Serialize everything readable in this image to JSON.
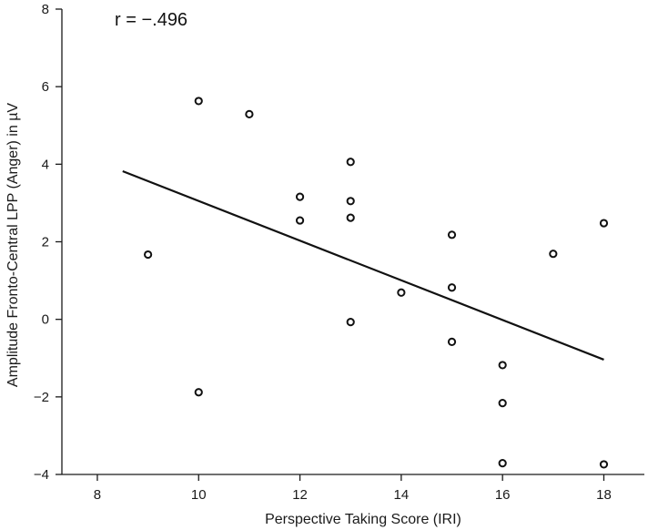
{
  "chart_data": {
    "type": "scatter",
    "title": "",
    "xlabel": "Perspective Taking Score (IRI)",
    "ylabel": "Amplitude Fronto-Central LPP (Anger) in  µV",
    "annotation": "r = −.496",
    "xlim": [
      7.3,
      18.8
    ],
    "ylim": [
      -4,
      8
    ],
    "xticks": [
      8,
      10,
      12,
      14,
      16,
      18
    ],
    "yticks": [
      -4,
      -2,
      0,
      2,
      4,
      6,
      8
    ],
    "xtick_labels": [
      "8",
      "10",
      "12",
      "14",
      "16",
      "18"
    ],
    "ytick_labels": [
      "−4",
      "−2",
      "0",
      "2",
      "4",
      "6",
      "8"
    ],
    "grid": false,
    "points": [
      {
        "x": 9,
        "y": 1.67
      },
      {
        "x": 10,
        "y": 5.63
      },
      {
        "x": 10,
        "y": -1.88
      },
      {
        "x": 11,
        "y": 5.29
      },
      {
        "x": 12,
        "y": 3.16
      },
      {
        "x": 12,
        "y": 2.55
      },
      {
        "x": 13,
        "y": 4.06
      },
      {
        "x": 13,
        "y": 3.05
      },
      {
        "x": 13,
        "y": 2.62
      },
      {
        "x": 13,
        "y": -0.07
      },
      {
        "x": 14,
        "y": 0.69
      },
      {
        "x": 15,
        "y": 2.18
      },
      {
        "x": 15,
        "y": 0.82
      },
      {
        "x": 15,
        "y": -0.58
      },
      {
        "x": 16,
        "y": -1.18
      },
      {
        "x": 16,
        "y": -2.16
      },
      {
        "x": 16,
        "y": -3.71
      },
      {
        "x": 17,
        "y": 1.69
      },
      {
        "x": 18,
        "y": 2.48
      },
      {
        "x": 18,
        "y": -3.74
      }
    ],
    "regression_line": {
      "x1": 8.5,
      "y1": 3.82,
      "x2": 18.0,
      "y2": -1.04
    },
    "colors": {
      "marker_stroke": "#111111",
      "line": "#111111",
      "axis": "#1a1a1a"
    }
  }
}
